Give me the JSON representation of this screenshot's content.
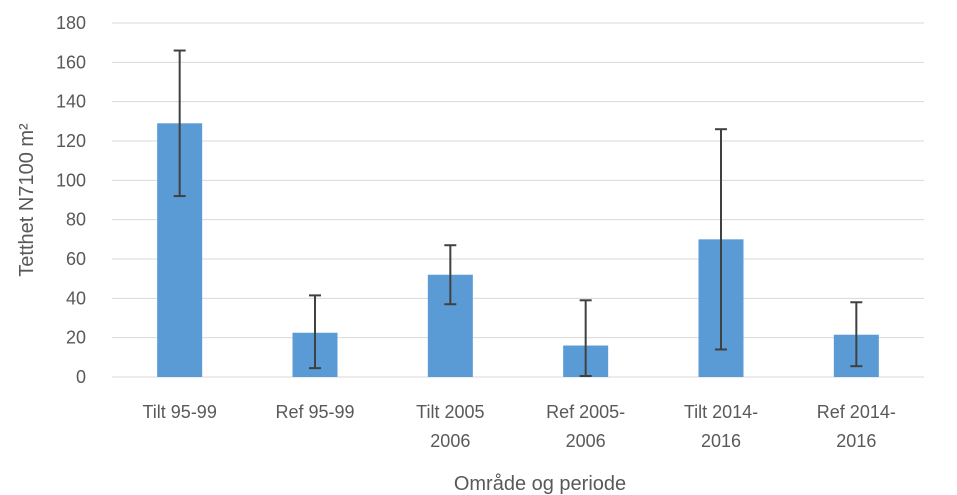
{
  "chart_data": {
    "type": "bar",
    "title": "",
    "xlabel": "Område og periode",
    "ylabel": "Tetthet N7100 m²",
    "ylim": [
      0,
      180
    ],
    "yticks": [
      0,
      20,
      40,
      60,
      80,
      100,
      120,
      140,
      160,
      180
    ],
    "grid": true,
    "categories": [
      [
        "Tilt 95-99"
      ],
      [
        "Ref 95-99"
      ],
      [
        "Tilt 2005",
        "2006"
      ],
      [
        "Ref 2005-",
        "2006"
      ],
      [
        "Tilt 2014-",
        "2016"
      ],
      [
        "Ref 2014-",
        "2016"
      ]
    ],
    "values": [
      129,
      22.5,
      52,
      16,
      70,
      21.5
    ],
    "error_low": [
      92,
      4.5,
      37,
      0.5,
      14,
      5.5
    ],
    "error_high": [
      166,
      41.5,
      67,
      39,
      126,
      38
    ],
    "colors": {
      "bar": "#5b9bd5",
      "error": "#404040",
      "grid": "#d9d9d9",
      "text": "#595959"
    }
  }
}
